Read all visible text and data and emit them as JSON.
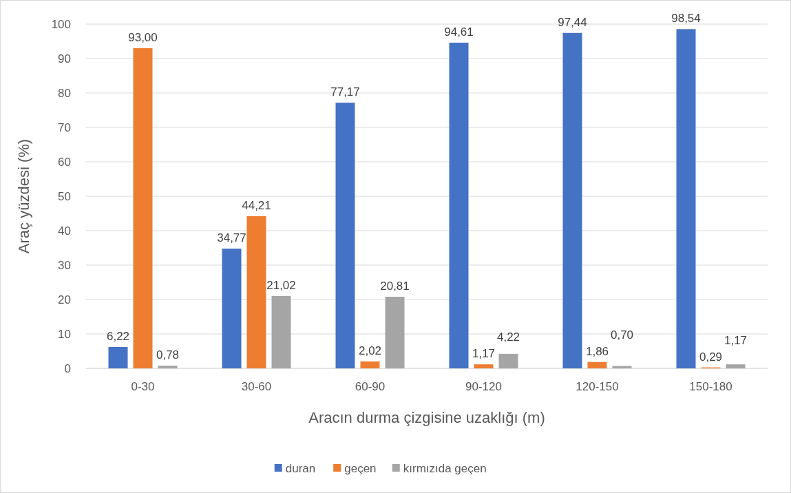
{
  "chart_data": {
    "type": "bar",
    "xlabel": "Aracın durma çizgisine uzaklığı (m)",
    "ylabel": "Araç yüzdesi (%)",
    "categories": [
      "0-30",
      "30-60",
      "60-90",
      "90-120",
      "120-150",
      "150-180"
    ],
    "series": [
      {
        "name": "duran",
        "color": "#4472c4",
        "values": [
          6.22,
          34.77,
          77.17,
          94.61,
          97.44,
          98.54
        ],
        "value_labels": [
          "6,22",
          "34,77",
          "77,17",
          "94,61",
          "97,44",
          "98,54"
        ]
      },
      {
        "name": "geçen",
        "color": "#ed7d31",
        "values": [
          93.0,
          44.21,
          2.02,
          1.17,
          1.86,
          0.29
        ],
        "value_labels": [
          "93,00",
          "44,21",
          "2,02",
          "1,17",
          "1,86",
          "0,29"
        ]
      },
      {
        "name": "kırmızıda geçen",
        "color": "#a5a5a5",
        "values": [
          0.78,
          21.02,
          20.81,
          4.22,
          0.7,
          1.17
        ],
        "value_labels": [
          "0,78",
          "21,02",
          "20,81",
          "4,22",
          "0,70",
          "1,17"
        ]
      }
    ],
    "ylim": [
      0,
      100
    ],
    "yticks": [
      0,
      10,
      20,
      30,
      40,
      50,
      60,
      70,
      80,
      90,
      100
    ],
    "grid": "y",
    "legend": "bottom"
  }
}
